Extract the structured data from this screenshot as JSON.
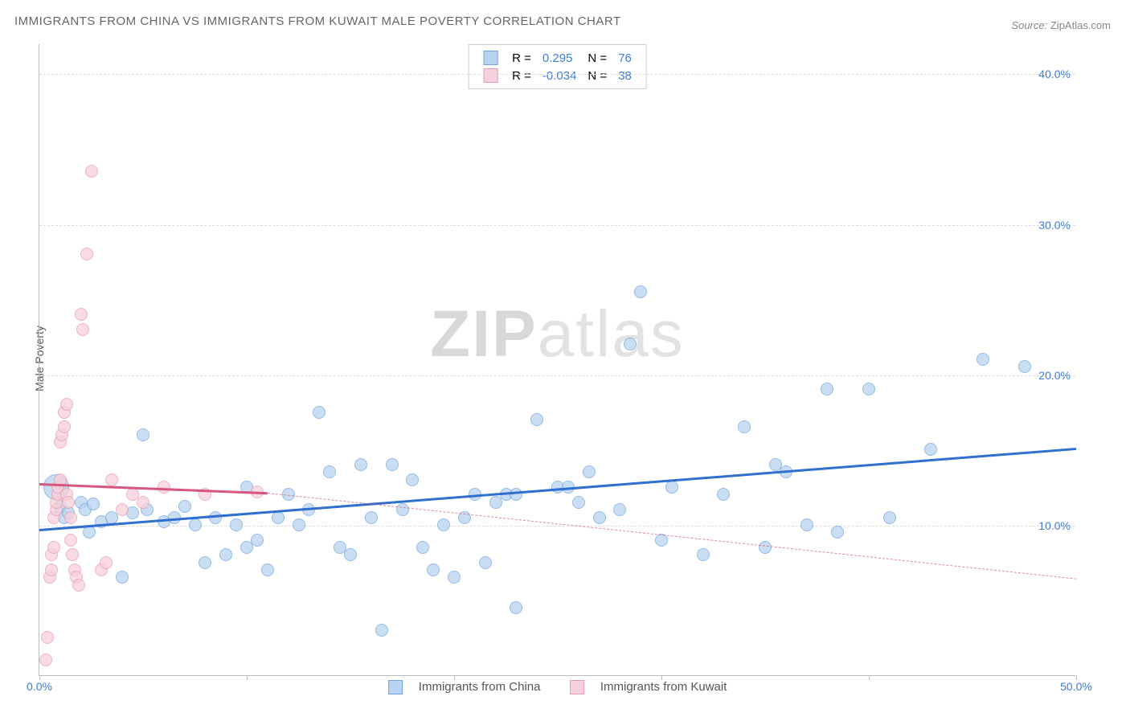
{
  "title": "IMMIGRANTS FROM CHINA VS IMMIGRANTS FROM KUWAIT MALE POVERTY CORRELATION CHART",
  "source_label": "Source:",
  "source_value": "ZipAtlas.com",
  "ylabel": "Male Poverty",
  "watermark_a": "ZIP",
  "watermark_b": "atlas",
  "chart": {
    "type": "scatter",
    "background_color": "#ffffff",
    "grid_color": "#dddddd",
    "axis_color": "#bbbbbb",
    "tick_label_color": "#3b7dd8",
    "xlim": [
      0,
      50
    ],
    "ylim": [
      0,
      42
    ],
    "xticks": [
      0,
      10,
      20,
      30,
      40,
      50
    ],
    "xtick_labels": [
      "0.0%",
      "",
      "",
      "",
      "",
      "50.0%"
    ],
    "yticks": [
      10,
      20,
      30,
      40
    ],
    "ytick_labels": [
      "10.0%",
      "20.0%",
      "30.0%",
      "40.0%"
    ],
    "marker_radius": 8,
    "marker_radius_big": 16,
    "series": [
      {
        "name": "Immigrants from China",
        "fill": "#b9d3f0",
        "stroke": "#6fa4e0",
        "trend_color": "#2f6fd0",
        "r": "0.295",
        "n": "76",
        "trend": {
          "x1": 0,
          "y1": 9.8,
          "x2": 50,
          "y2": 15.2
        },
        "points": [
          [
            0.8,
            12.5,
            "big"
          ],
          [
            1.0,
            11.2
          ],
          [
            1.2,
            10.5
          ],
          [
            1.4,
            10.8
          ],
          [
            2.0,
            11.5
          ],
          [
            2.2,
            11.0
          ],
          [
            2.4,
            9.5
          ],
          [
            2.6,
            11.4
          ],
          [
            3.0,
            10.2
          ],
          [
            3.5,
            10.5
          ],
          [
            4.0,
            6.5
          ],
          [
            4.5,
            10.8
          ],
          [
            5.0,
            16.0
          ],
          [
            5.2,
            11.0
          ],
          [
            6.0,
            10.2
          ],
          [
            6.5,
            10.5
          ],
          [
            7.0,
            11.2
          ],
          [
            7.5,
            10.0
          ],
          [
            8.0,
            7.5
          ],
          [
            8.5,
            10.5
          ],
          [
            9.0,
            8.0
          ],
          [
            9.5,
            10.0
          ],
          [
            10.0,
            12.5
          ],
          [
            10.0,
            8.5
          ],
          [
            10.5,
            9.0
          ],
          [
            11.0,
            7.0
          ],
          [
            11.5,
            10.5
          ],
          [
            12.0,
            12.0
          ],
          [
            12.5,
            10.0
          ],
          [
            13.0,
            11.0
          ],
          [
            13.5,
            17.5
          ],
          [
            14.0,
            13.5
          ],
          [
            14.5,
            8.5
          ],
          [
            15.0,
            8.0
          ],
          [
            15.5,
            14.0
          ],
          [
            16.0,
            10.5
          ],
          [
            16.5,
            3.0
          ],
          [
            17.0,
            14.0
          ],
          [
            17.5,
            11.0
          ],
          [
            18.0,
            13.0
          ],
          [
            18.5,
            8.5
          ],
          [
            19.0,
            7.0
          ],
          [
            19.5,
            10.0
          ],
          [
            20.0,
            6.5
          ],
          [
            20.5,
            10.5
          ],
          [
            21.0,
            12.0
          ],
          [
            21.5,
            7.5
          ],
          [
            22.0,
            11.5
          ],
          [
            22.5,
            12.0
          ],
          [
            23.0,
            12.0
          ],
          [
            23.0,
            4.5
          ],
          [
            24.0,
            17.0
          ],
          [
            25.0,
            12.5
          ],
          [
            25.5,
            12.5
          ],
          [
            26.0,
            11.5
          ],
          [
            26.5,
            13.5
          ],
          [
            27.0,
            10.5
          ],
          [
            28.0,
            11.0
          ],
          [
            28.5,
            22.0
          ],
          [
            29.0,
            25.5
          ],
          [
            30.0,
            9.0
          ],
          [
            30.5,
            12.5
          ],
          [
            32.0,
            8.0
          ],
          [
            33.0,
            12.0
          ],
          [
            34.0,
            16.5
          ],
          [
            35.0,
            8.5
          ],
          [
            35.5,
            14.0
          ],
          [
            36.0,
            13.5
          ],
          [
            37.0,
            10.0
          ],
          [
            38.0,
            19.0
          ],
          [
            38.5,
            9.5
          ],
          [
            40.0,
            19.0
          ],
          [
            41.0,
            10.5
          ],
          [
            43.0,
            15.0
          ],
          [
            45.5,
            21.0
          ],
          [
            47.5,
            20.5
          ]
        ]
      },
      {
        "name": "Immigrants from Kuwait",
        "fill": "#f6d0da",
        "stroke": "#e89ab0",
        "trend_color": "#d6567d",
        "r": "-0.034",
        "n": "38",
        "trend": {
          "x1": 0,
          "y1": 12.8,
          "x2": 11,
          "y2": 12.2
        },
        "trend_dash": {
          "x1": 11,
          "y1": 12.2,
          "x2": 50,
          "y2": 6.5
        },
        "points": [
          [
            0.3,
            1.0
          ],
          [
            0.4,
            2.5
          ],
          [
            0.5,
            6.5
          ],
          [
            0.6,
            7.0
          ],
          [
            0.6,
            8.0
          ],
          [
            0.7,
            8.5
          ],
          [
            0.7,
            10.5
          ],
          [
            0.8,
            11.0
          ],
          [
            0.8,
            11.5
          ],
          [
            0.9,
            12.0
          ],
          [
            0.9,
            12.5
          ],
          [
            1.0,
            13.0
          ],
          [
            1.0,
            15.5
          ],
          [
            1.1,
            16.0
          ],
          [
            1.2,
            16.5
          ],
          [
            1.2,
            17.5
          ],
          [
            1.3,
            18.0
          ],
          [
            1.3,
            12.0
          ],
          [
            1.4,
            11.5
          ],
          [
            1.5,
            10.5
          ],
          [
            1.5,
            9.0
          ],
          [
            1.6,
            8.0
          ],
          [
            1.7,
            7.0
          ],
          [
            1.8,
            6.5
          ],
          [
            1.9,
            6.0
          ],
          [
            2.0,
            24.0
          ],
          [
            2.1,
            23.0
          ],
          [
            2.3,
            28.0
          ],
          [
            2.5,
            33.5
          ],
          [
            3.0,
            7.0
          ],
          [
            3.2,
            7.5
          ],
          [
            3.5,
            13.0
          ],
          [
            4.0,
            11.0
          ],
          [
            4.5,
            12.0
          ],
          [
            5.0,
            11.5
          ],
          [
            6.0,
            12.5
          ],
          [
            8.0,
            12.0
          ],
          [
            10.5,
            12.2
          ]
        ]
      }
    ]
  },
  "legend_bottom": [
    {
      "label": "Immigrants from China",
      "fill": "#b9d3f0",
      "stroke": "#6fa4e0"
    },
    {
      "label": "Immigrants from Kuwait",
      "fill": "#f6d0da",
      "stroke": "#e89ab0"
    }
  ]
}
